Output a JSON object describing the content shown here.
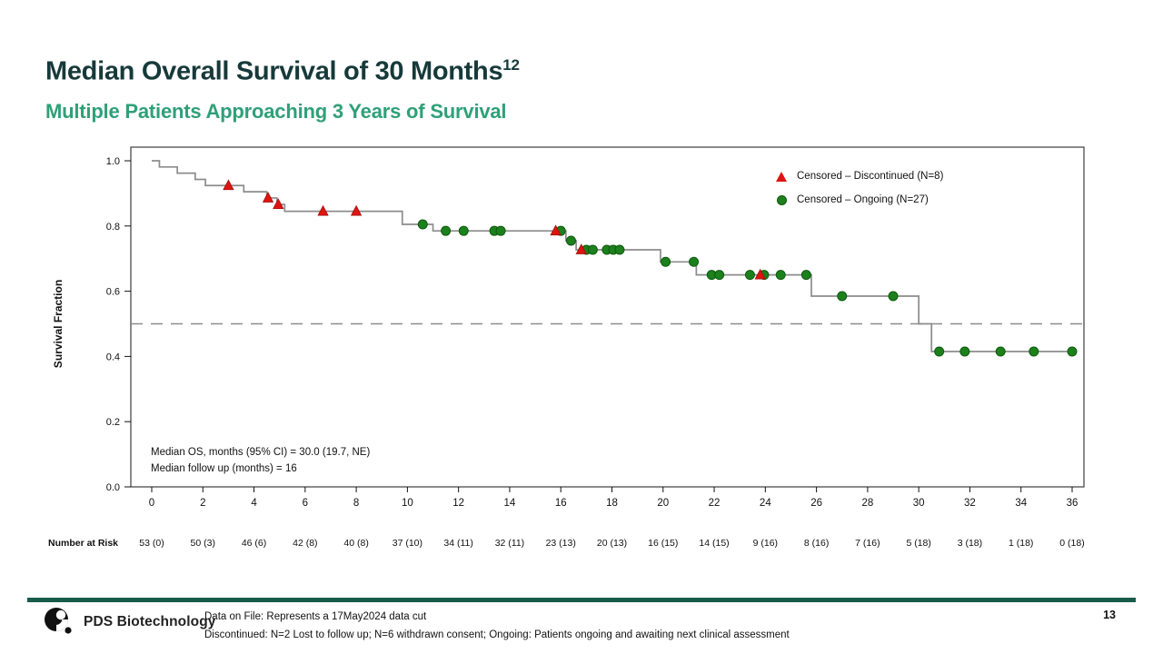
{
  "header": {
    "title": "Median Overall Survival of 30 Months",
    "title_sup": "12",
    "subtitle": "Multiple Patients Approaching 3 Years of Survival"
  },
  "colors": {
    "title": "#17393a",
    "subtitle": "#2fa078",
    "curve": "#8c8c8c",
    "median_line": "#8c8c8c",
    "censor_discontinued": "#df1410",
    "censor_ongoing": "#1c801c",
    "frame": "#3c3c3c",
    "footer_bar": "#185c4b"
  },
  "chart_data": {
    "type": "line",
    "subtype": "kaplan-meier-step",
    "title": "",
    "xlabel": "",
    "ylabel": "Survival Fraction",
    "xlim": [
      0,
      36
    ],
    "ylim": [
      0.0,
      1.0
    ],
    "grid": false,
    "xtick_values": [
      0,
      2,
      4,
      6,
      8,
      10,
      12,
      14,
      16,
      18,
      20,
      22,
      24,
      26,
      28,
      30,
      32,
      34,
      36
    ],
    "ytick_values": [
      0.0,
      0.2,
      0.4,
      0.6,
      0.8,
      1.0
    ],
    "ytick_labels": [
      "0.0",
      "0.2",
      "0.4",
      "0.6",
      "0.8",
      "1.0"
    ],
    "median_reference_line_y": 0.5,
    "end_time": 36,
    "steps": [
      [
        0,
        1.0
      ],
      [
        0.3,
        0.981
      ],
      [
        1.0,
        0.962
      ],
      [
        1.7,
        0.943
      ],
      [
        2.1,
        0.924
      ],
      [
        3.6,
        0.905
      ],
      [
        4.5,
        0.886
      ],
      [
        4.9,
        0.866
      ],
      [
        5.2,
        0.845
      ],
      [
        9.8,
        0.805
      ],
      [
        11.0,
        0.785
      ],
      [
        16.2,
        0.755
      ],
      [
        16.6,
        0.727
      ],
      [
        19.9,
        0.69
      ],
      [
        21.3,
        0.65
      ],
      [
        25.8,
        0.585
      ],
      [
        30.0,
        0.5
      ],
      [
        30.5,
        0.415
      ]
    ],
    "censored_discontinued_t": [
      3.0,
      4.55,
      4.95,
      6.7,
      8.0,
      15.8,
      16.8,
      23.8
    ],
    "censored_ongoing_t": [
      10.6,
      11.5,
      12.2,
      13.4,
      13.65,
      16.0,
      16.4,
      17.0,
      17.25,
      17.8,
      18.05,
      18.3,
      20.1,
      21.2,
      21.9,
      22.2,
      23.4,
      23.95,
      24.6,
      25.6,
      27.0,
      29.0,
      30.8,
      31.8,
      33.2,
      34.5,
      36.0
    ],
    "legend": [
      {
        "marker": "triangle",
        "label": "Censored – Discontinued (N=8)"
      },
      {
        "marker": "circle",
        "label": "Censored – Ongoing (N=27)"
      }
    ],
    "annotation": {
      "line1": "Median OS, months (95% CI) = 30.0 (19.7, NE)",
      "line2": "Median follow up (months) = 16"
    },
    "number_at_risk": {
      "label": "Number at Risk",
      "times": [
        0,
        2,
        4,
        6,
        8,
        10,
        12,
        14,
        16,
        18,
        20,
        22,
        24,
        26,
        28,
        30,
        32,
        34,
        36
      ],
      "values": [
        "53 (0)",
        "50 (3)",
        "46 (6)",
        "42 (8)",
        "40 (8)",
        "37 (10)",
        "34 (11)",
        "32 (11)",
        "23 (13)",
        "20 (13)",
        "16 (15)",
        "14 (15)",
        "9 (16)",
        "8 (16)",
        "7 (16)",
        "5 (18)",
        "3 (18)",
        "1 (18)",
        "0 (18)"
      ]
    }
  },
  "footer": {
    "brand": "PDS Biotechnology",
    "note_line1": "Data on File: Represents a 17May2024 data cut",
    "note_line2": "Discontinued: N=2 Lost to follow up; N=6 withdrawn consent;  Ongoing: Patients ongoing and awaiting next clinical assessment",
    "page_number": "13"
  }
}
